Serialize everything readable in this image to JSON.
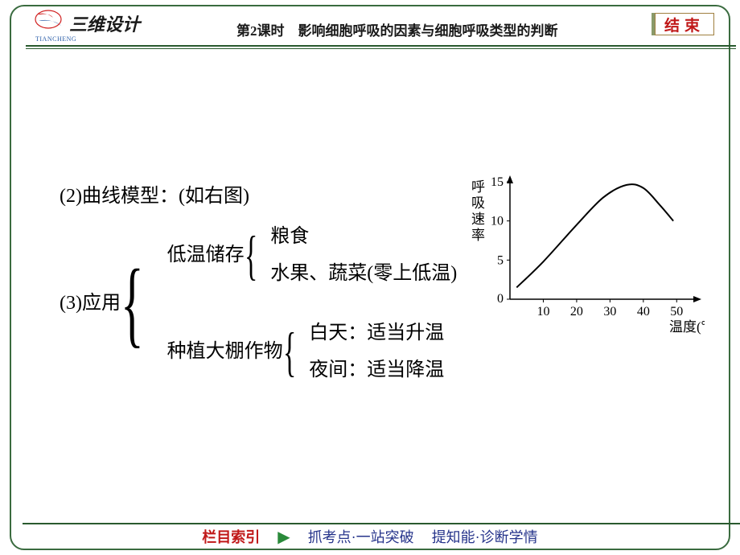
{
  "header": {
    "brand": "三维设计",
    "brand_sub": "TIANCHENG",
    "title": "第2课时　影响细胞呼吸的因素与细胞呼吸类型的判断",
    "end_label": "结束"
  },
  "content": {
    "item2": "(2)曲线模型：(如右图)",
    "item3_label": "(3)应用",
    "branch1_label": "低温储存",
    "branch1_items": [
      "粮食",
      "水果、蔬菜(零上低温)"
    ],
    "branch2_label": "种植大棚作物",
    "branch2_items": [
      "白天：适当升温",
      "夜间：适当降温"
    ]
  },
  "chart": {
    "type": "line",
    "y_label": "呼吸速率",
    "x_label": "温度(℃)",
    "ylim": [
      0,
      15
    ],
    "yticks": [
      0,
      5,
      10,
      15
    ],
    "xticks": [
      10,
      20,
      30,
      40,
      50
    ],
    "xlim": [
      0,
      55
    ],
    "points": [
      [
        2,
        1.5
      ],
      [
        10,
        4.8
      ],
      [
        20,
        9.5
      ],
      [
        28,
        13
      ],
      [
        35,
        14.6
      ],
      [
        40,
        14.2
      ],
      [
        45,
        12
      ],
      [
        49,
        10
      ]
    ],
    "line_color": "#000000",
    "line_width": 2,
    "axis_color": "#000000",
    "bg_color": "#ffffff",
    "font_size": 16
  },
  "footer": {
    "index_label": "栏目索引",
    "link1": "抓考点·一站突破",
    "link2": "提知能·诊断学情"
  },
  "colors": {
    "frame_border": "#3a6b3f",
    "accent_red": "#c01818",
    "nav_blue": "#26348b"
  }
}
